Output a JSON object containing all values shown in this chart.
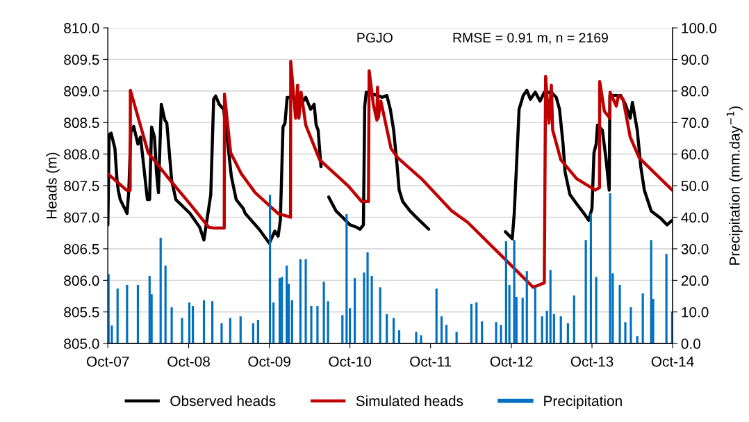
{
  "chart_data": {
    "type": "line",
    "ylabel": "Heads (m)",
    "y2label": "Precipitation (mm.day$^{−1}$)",
    "annotations": [
      "PGJO",
      "RMSE = 0.91 m, n = 2169"
    ],
    "xlim": [
      "2007-10-01",
      "2014-10-01"
    ],
    "xticks": [
      {
        "value": "2007-10-01",
        "label": "Oct-07"
      },
      {
        "value": "2008-10-01",
        "label": "Oct-08"
      },
      {
        "value": "2009-10-01",
        "label": "Oct-09"
      },
      {
        "value": "2010-10-01",
        "label": "Oct-10"
      },
      {
        "value": "2011-10-01",
        "label": "Oct-11"
      },
      {
        "value": "2012-10-01",
        "label": "Oct-12"
      },
      {
        "value": "2013-10-01",
        "label": "Oct-13"
      },
      {
        "value": "2014-10-01",
        "label": "Oct-14"
      }
    ],
    "ylim": [
      805,
      810
    ],
    "yticks": [
      {
        "value": 805,
        "label": "805.0"
      },
      {
        "value": 805.5,
        "label": "805.5"
      },
      {
        "value": 806,
        "label": "806.0"
      },
      {
        "value": 806.5,
        "label": "806.5"
      },
      {
        "value": 807,
        "label": "807.0"
      },
      {
        "value": 807.5,
        "label": "807.5"
      },
      {
        "value": 808,
        "label": "808.0"
      },
      {
        "value": 808.5,
        "label": "808.5"
      },
      {
        "value": 809,
        "label": "809.0"
      },
      {
        "value": 809.5,
        "label": "809.5"
      },
      {
        "value": 810,
        "label": "810.0"
      }
    ],
    "y2lim": [
      0,
      100
    ],
    "y2ticks": [
      {
        "value": 0,
        "label": "0.0"
      },
      {
        "value": 10,
        "label": "10.0"
      },
      {
        "value": 20,
        "label": "20.0"
      },
      {
        "value": 30,
        "label": "30.0"
      },
      {
        "value": 40,
        "label": "40.0"
      },
      {
        "value": 50,
        "label": "50.0"
      },
      {
        "value": 60,
        "label": "60.0"
      },
      {
        "value": 70,
        "label": "70.0"
      },
      {
        "value": 80,
        "label": "80.0"
      },
      {
        "value": 90,
        "label": "90.0"
      },
      {
        "value": 100,
        "label": "100.0"
      }
    ],
    "grid": "y",
    "legend": "bottom",
    "marker": "none",
    "line_style": "solid",
    "series": [
      {
        "name": "Observed heads",
        "color": "#000000",
        "x": [
          "2007-10-01",
          "2007-10-07",
          "2007-10-16",
          "2007-11-02",
          "2007-11-11",
          "2007-11-17",
          "2007-11-26",
          "2007-12-27",
          "2008-01-04",
          "2008-01-13",
          "2008-01-26",
          "2008-02-14",
          "2008-02-26",
          "2008-03-28",
          "2008-04-07",
          "2008-04-16",
          "2008-04-29",
          "2008-05-08",
          "2008-05-17",
          "2008-05-30",
          "2008-06-15",
          "2008-06-24",
          "2008-07-16",
          "2008-08-04",
          "2008-10-07",
          "2008-11-20",
          "2008-12-09",
          "2008-12-21",
          "2009-01-09",
          "2009-01-22",
          "2009-01-31",
          "2009-02-16",
          "2009-03-08",
          "2009-03-24",
          "2009-04-12",
          "2009-05-04",
          "2009-06-05",
          "2009-06-14",
          "2009-08-16",
          "2009-09-08",
          "2009-10-01",
          "2009-10-26",
          "2009-11-10",
          "2009-11-20",
          "2009-12-02",
          "2009-12-11",
          "2009-12-21",
          "2010-01-12",
          "2010-02-22",
          "2010-03-15",
          "2010-04-06",
          "2010-04-22",
          "2010-05-01",
          "2010-05-10",
          "2010-05-23",
          "2010-06-10",
          "2010-06-27",
          "2010-07-30",
          "2010-08-31",
          "2010-10-01",
          "2010-11-01",
          "2010-11-16",
          "2010-12-01",
          "2010-12-07",
          "2010-12-14",
          "2011-02-01",
          "2011-02-24",
          "2011-03-17",
          "2011-04-02",
          "2011-04-17",
          "2011-05-03",
          "2011-05-12",
          "2011-05-28",
          "2011-06-30",
          "2011-07-31",
          "2011-09-23",
          "2012-03-01",
          "2012-09-04",
          "2012-10-05",
          "2012-10-14",
          "2012-10-24",
          "2012-11-05",
          "2012-11-24",
          "2012-12-10",
          "2012-12-26",
          "2013-01-17",
          "2013-02-08",
          "2013-02-27",
          "2013-03-31",
          "2013-04-22",
          "2013-05-07",
          "2013-05-23",
          "2013-06-01",
          "2013-06-23",
          "2013-07-24",
          "2013-08-26",
          "2013-09-16",
          "2013-10-01",
          "2013-10-10",
          "2013-10-20",
          "2013-10-26",
          "2013-11-17",
          "2013-12-03",
          "2013-12-18",
          "2013-12-21",
          "2014-01-07",
          "2014-02-08",
          "2014-03-01",
          "2014-03-23",
          "2014-04-02",
          "2014-04-24",
          "2014-05-10",
          "2014-05-26",
          "2014-06-26",
          "2014-08-06",
          "2014-09-06",
          "2014-09-29"
        ],
        "values": [
          806.88,
          808.31,
          808.33,
          808.09,
          807.61,
          807.43,
          807.28,
          807.06,
          807.43,
          808.35,
          808.44,
          808.16,
          808.27,
          807.28,
          807.28,
          808.43,
          808.27,
          807.72,
          807.39,
          808.79,
          808.54,
          808.49,
          807.58,
          807.28,
          807.06,
          806.84,
          806.64,
          806.92,
          807.36,
          808.87,
          808.92,
          808.79,
          808.71,
          808.27,
          807.65,
          807.28,
          807.14,
          807.06,
          806.81,
          806.7,
          806.59,
          806.78,
          806.7,
          806.95,
          808.43,
          808.49,
          808.9,
          808.9,
          808.79,
          808.9,
          808.71,
          808.79,
          808.46,
          808.38,
          807.8,
          null,
          807.32,
          807.1,
          806.99,
          806.88,
          806.84,
          806.81,
          806.88,
          808.76,
          808.98,
          808.93,
          808.9,
          808.93,
          808.71,
          808.38,
          807.8,
          807.43,
          807.25,
          807.1,
          806.99,
          806.81,
          null,
          806.77,
          806.66,
          807.06,
          807.8,
          808.71,
          808.93,
          809.01,
          808.87,
          808.98,
          808.84,
          808.98,
          808.98,
          808.9,
          808.71,
          808.16,
          807.72,
          807.36,
          807.21,
          807.06,
          806.95,
          807.14,
          808.02,
          808.16,
          808.46,
          808.38,
          807.94,
          807.43,
          808.93,
          808.93,
          808.93,
          808.79,
          808.57,
          808.82,
          808.38,
          807.8,
          807.43,
          807.1,
          806.99,
          806.88,
          806.95
        ]
      },
      {
        "name": "Simulated heads",
        "color": "#c00000",
        "x": [
          "2007-10-01",
          "2007-12-24",
          "2008-01-10",
          "2008-01-11",
          "2008-01-20",
          "2008-04-01",
          "2008-06-24",
          "2008-10-07",
          "2008-12-31",
          "2009-01-22",
          "2009-03-11",
          "2009-03-12",
          "2009-04-09",
          "2009-05-27",
          "2009-07-29",
          "2009-11-10",
          "2010-01-05",
          "2010-01-06",
          "2010-01-28",
          "2010-02-06",
          "2010-02-12",
          "2010-02-22",
          "2010-03-15",
          "2010-05-17",
          "2010-09-22",
          "2010-11-23",
          "2010-12-24",
          "2010-12-27",
          "2011-01-15",
          "2011-01-31",
          "2011-02-03",
          "2011-02-06",
          "2011-02-18",
          "2011-04-05",
          "2011-05-06",
          "2011-08-21",
          "2012-01-05",
          "2012-03-17",
          "2012-09-04",
          "2013-01-08",
          "2013-02-27",
          "2013-03-05",
          "2013-03-20",
          "2013-03-31",
          "2013-04-06",
          "2013-05-13",
          "2013-07-24",
          "2013-10-16",
          "2013-11-04",
          "2013-11-05",
          "2013-11-26",
          "2013-12-21",
          "2013-12-22",
          "2014-01-19",
          "2014-01-29",
          "2014-02-19",
          "2014-03-23",
          "2014-05-03",
          "2014-09-29"
        ],
        "values": [
          807.69,
          807.43,
          807.43,
          809.01,
          808.9,
          808.02,
          807.65,
          807.21,
          806.84,
          806.83,
          806.83,
          808.95,
          808.02,
          807.69,
          807.39,
          807.06,
          807.0,
          809.47,
          808.57,
          809.09,
          808.57,
          808.98,
          808.46,
          807.91,
          807.5,
          807.25,
          807.25,
          809.32,
          808.79,
          808.54,
          809.06,
          808.57,
          808.84,
          808.09,
          807.94,
          807.61,
          807.1,
          806.92,
          806.33,
          805.89,
          805.96,
          809.23,
          808.49,
          809.09,
          808.38,
          807.91,
          807.61,
          807.43,
          807.47,
          809.15,
          808.68,
          808.57,
          808.98,
          808.76,
          808.93,
          808.87,
          808.27,
          807.94,
          807.43
        ]
      },
      {
        "name": "Precipitation",
        "color": "#0070c0",
        "type": "bar",
        "axis": "y2",
        "x": [
          "2007-10-04",
          "2007-10-19",
          "2007-11-14",
          "2007-12-27",
          "2008-02-14",
          "2008-04-07",
          "2008-04-16",
          "2008-05-27",
          "2008-06-18",
          "2008-07-16",
          "2008-09-01",
          "2008-10-04",
          "2008-10-20",
          "2008-12-09",
          "2009-01-16",
          "2009-02-27",
          "2009-04-07",
          "2009-05-24",
          "2009-07-20",
          "2009-08-11",
          "2009-10-04",
          "2009-10-20",
          "2009-11-17",
          "2009-11-27",
          "2009-12-19",
          "2009-12-28",
          "2010-01-12",
          "2010-02-19",
          "2010-03-15",
          "2010-04-09",
          "2010-05-07",
          "2010-06-05",
          "2010-06-24",
          "2010-08-28",
          "2010-09-16",
          "2010-10-01",
          "2010-10-23",
          "2010-12-04",
          "2010-12-20",
          "2011-01-08",
          "2011-02-15",
          "2011-03-17",
          "2011-04-17",
          "2011-05-12",
          "2011-07-28",
          "2011-08-19",
          "2011-10-28",
          "2011-11-20",
          "2011-12-12",
          "2012-01-27",
          "2012-04-03",
          "2012-04-26",
          "2012-05-21",
          "2012-07-24",
          "2012-08-15",
          "2012-09-07",
          "2012-09-22",
          "2012-10-14",
          "2012-10-24",
          "2012-11-21",
          "2012-12-10",
          "2013-01-17",
          "2013-02-17",
          "2013-03-11",
          "2013-03-27",
          "2013-04-12",
          "2013-05-13",
          "2013-06-14",
          "2013-07-12",
          "2013-09-03",
          "2013-09-26",
          "2013-10-20",
          "2013-12-22",
          "2014-01-03",
          "2014-02-04",
          "2014-03-01",
          "2014-03-26",
          "2014-04-24",
          "2014-05-19",
          "2014-06-26",
          "2014-07-05",
          "2014-09-03",
          "2014-09-29"
        ],
        "values": [
          22,
          5.7,
          17.4,
          18.5,
          18.5,
          21.4,
          15.6,
          33.5,
          24.7,
          11.5,
          8.1,
          13.0,
          11.9,
          13.7,
          13.4,
          6.4,
          8.1,
          8.6,
          6.4,
          7.5,
          47.1,
          13.0,
          20.7,
          21.1,
          24.7,
          18.9,
          13.7,
          26.7,
          26.7,
          11.9,
          11.9,
          19.6,
          13.4,
          9.0,
          41.0,
          11.2,
          20.7,
          22.5,
          28.9,
          21.4,
          17.8,
          9.3,
          8.1,
          4.2,
          3.7,
          2.6,
          17.4,
          8.6,
          5.9,
          3.7,
          12.6,
          13.0,
          7.0,
          6.8,
          5.9,
          32.4,
          18.5,
          32.8,
          14.8,
          14.5,
          22.9,
          17.8,
          8.6,
          10.4,
          23.3,
          9.3,
          8.6,
          6.4,
          15.2,
          32.8,
          41.2,
          21.1,
          47.6,
          22.2,
          18.5,
          6.8,
          11.5,
          2.4,
          15.9,
          32.8,
          14.1,
          28.4,
          10.1
        ]
      }
    ]
  }
}
